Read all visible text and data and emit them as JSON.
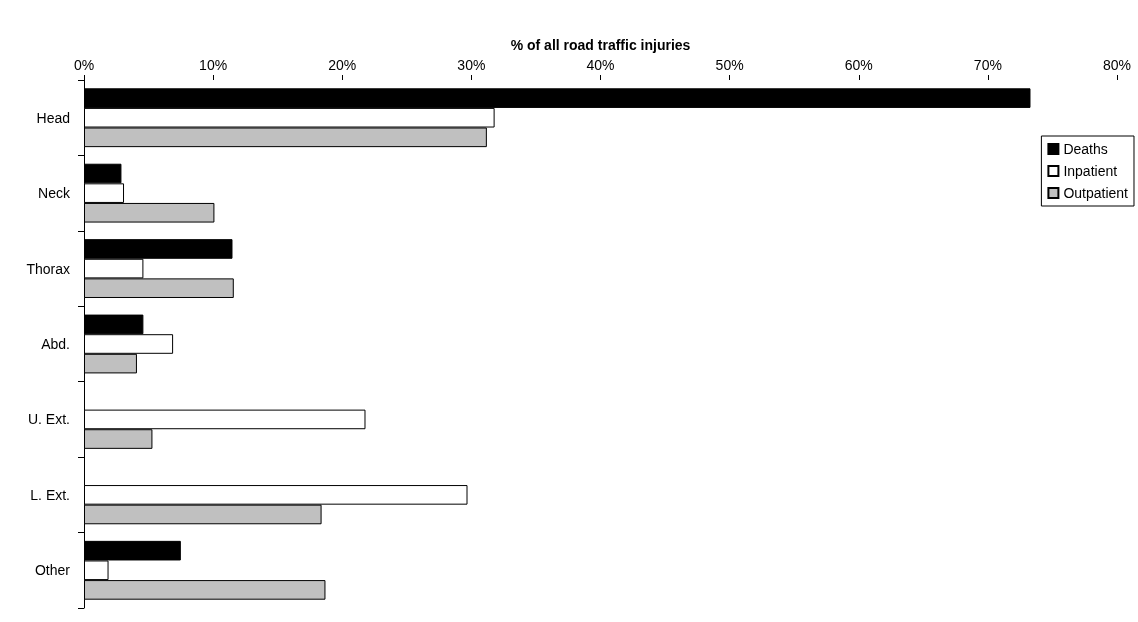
{
  "chart_data": {
    "type": "bar",
    "orientation": "horizontal",
    "xlabel": "% of all road traffic injuries",
    "categories": [
      "Head",
      "Neck",
      "Thorax",
      "Abd.",
      "U. Ext.",
      "L. Ext.",
      "Other"
    ],
    "series": [
      {
        "name": "Deaths",
        "color": "#000000",
        "values": [
          73.3,
          2.9,
          11.5,
          4.6,
          null,
          null,
          7.5
        ]
      },
      {
        "name": "Inpatient",
        "color": "#ffffff",
        "values": [
          31.8,
          3.1,
          4.6,
          6.9,
          21.8,
          29.7,
          1.9
        ]
      },
      {
        "name": "Outpatient",
        "color": "#c0c0c0",
        "values": [
          31.2,
          10.1,
          11.6,
          4.1,
          5.3,
          18.4,
          18.7
        ]
      }
    ],
    "xlim": [
      0,
      80
    ],
    "xticks": [
      {
        "value": 0,
        "label": "0%"
      },
      {
        "value": 10,
        "label": "10%"
      },
      {
        "value": 20,
        "label": "20%"
      },
      {
        "value": 30,
        "label": "30%"
      },
      {
        "value": 40,
        "label": "40%"
      },
      {
        "value": 50,
        "label": "50%"
      },
      {
        "value": 60,
        "label": "60%"
      },
      {
        "value": 70,
        "label": "70%"
      },
      {
        "value": 80,
        "label": "80%"
      }
    ],
    "grid": false,
    "legend": "top right"
  }
}
